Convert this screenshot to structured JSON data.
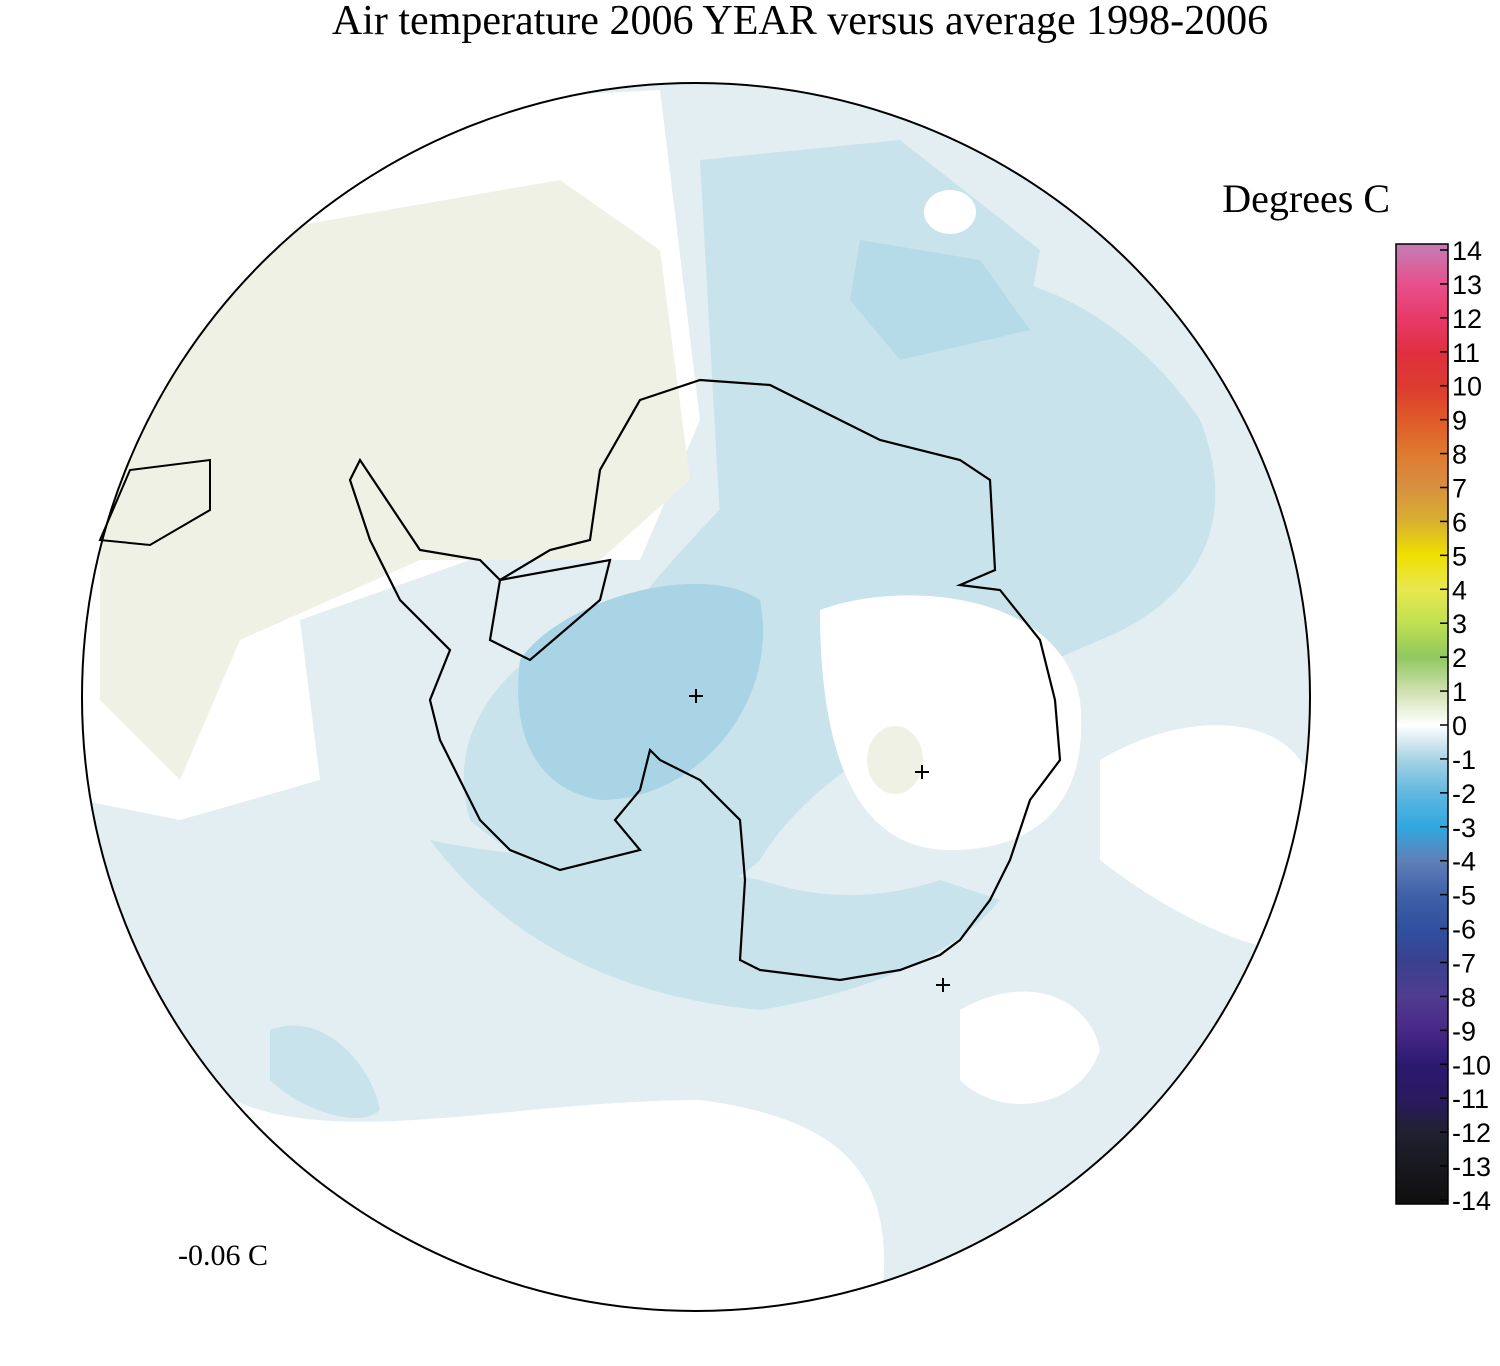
{
  "title": "Air temperature 2006 YEAR versus average 1998-2006",
  "colorbar": {
    "title": "Degrees C",
    "ticks": [
      14,
      13,
      12,
      11,
      10,
      9,
      8,
      7,
      6,
      5,
      4,
      3,
      2,
      1,
      0,
      -1,
      -2,
      -3,
      -4,
      -5,
      -6,
      -7,
      -8,
      -9,
      -10,
      -11,
      -12,
      -13,
      -14
    ],
    "colors": [
      "#c878b0",
      "#e8508c",
      "#e83a6a",
      "#e03040",
      "#dd3a30",
      "#e05a28",
      "#e07a30",
      "#d89040",
      "#d8b030",
      "#f0e000",
      "#e8e850",
      "#c0e050",
      "#90c860",
      "#d0e0b0",
      "#ffffff",
      "#a8d4e4",
      "#60b8e0",
      "#30a8e0",
      "#6080b8",
      "#4060a8",
      "#3050a0",
      "#3a4090",
      "#503c90",
      "#482888",
      "#2a1a70",
      "#2a1a60",
      "#202030",
      "#181820",
      "#101010"
    ]
  },
  "annotation": "-0.06 C"
}
